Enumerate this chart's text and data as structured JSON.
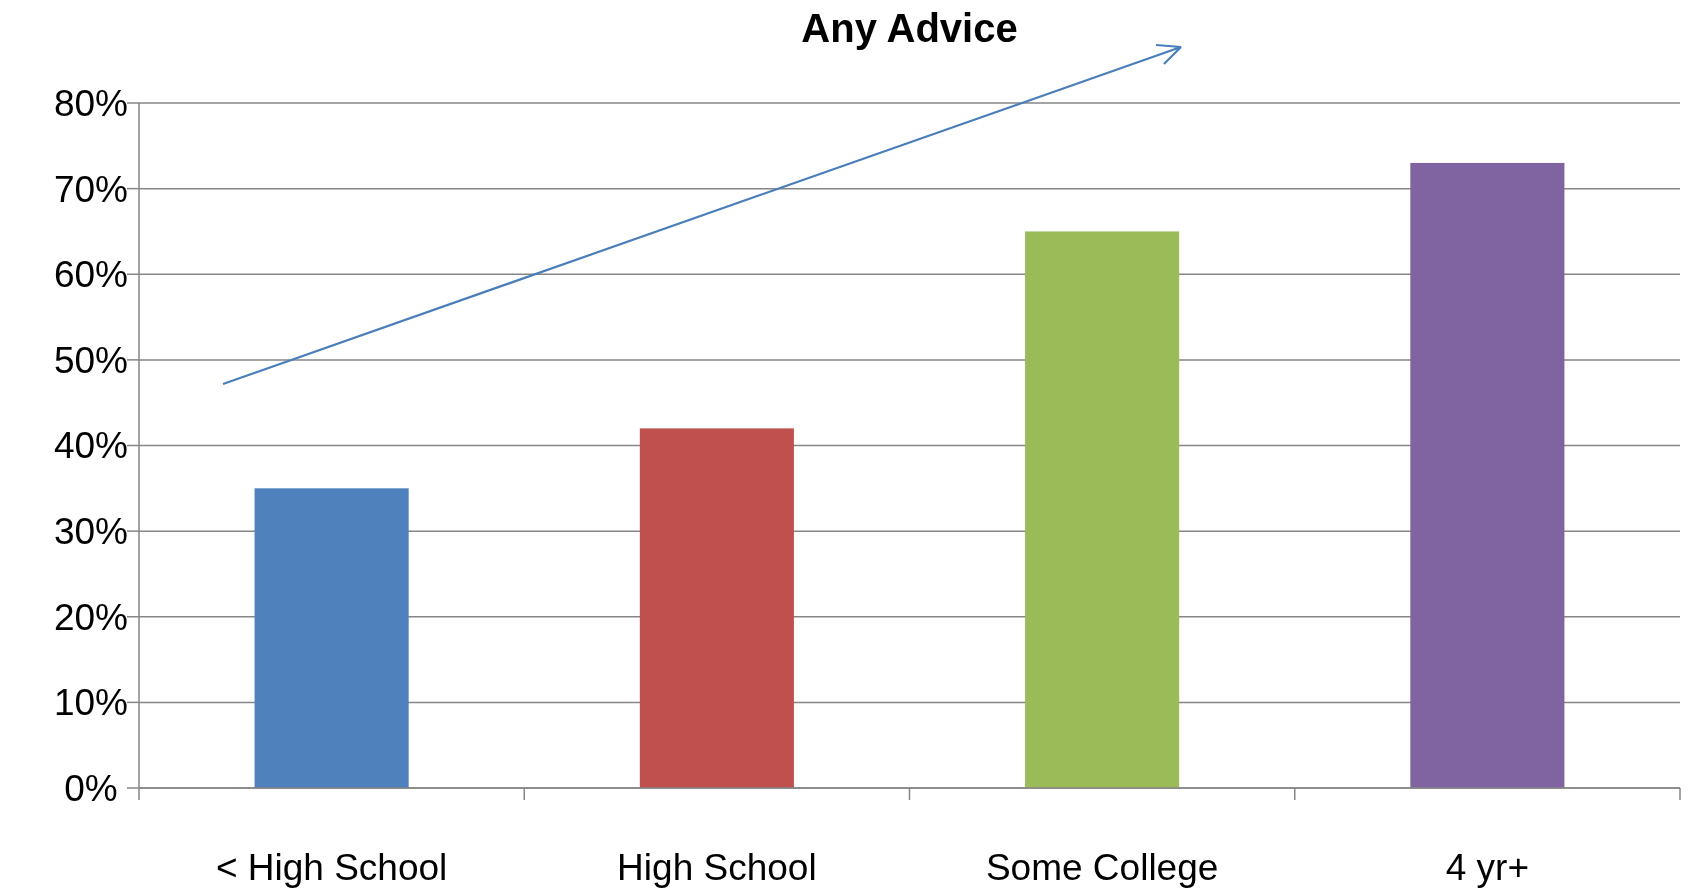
{
  "chart_data": {
    "type": "bar",
    "title": "Any Advice",
    "categories": [
      "< High School",
      "High School",
      "Some College",
      "4 yr+"
    ],
    "values": [
      35,
      42,
      65,
      73
    ],
    "colors": [
      "#4f81bd",
      "#c0504d",
      "#9bbb59",
      "#8064a2"
    ],
    "ylim": [
      0,
      80
    ],
    "yticks": [
      {
        "value": 0,
        "label": "0%"
      },
      {
        "value": 10,
        "label": "10%"
      },
      {
        "value": 20,
        "label": "20%"
      },
      {
        "value": 30,
        "label": "30%"
      },
      {
        "value": 40,
        "label": "40%"
      },
      {
        "value": 50,
        "label": "50%"
      },
      {
        "value": 60,
        "label": "60%"
      },
      {
        "value": 70,
        "label": "70%"
      },
      {
        "value": 80,
        "label": "80%"
      }
    ],
    "grid": "y"
  }
}
